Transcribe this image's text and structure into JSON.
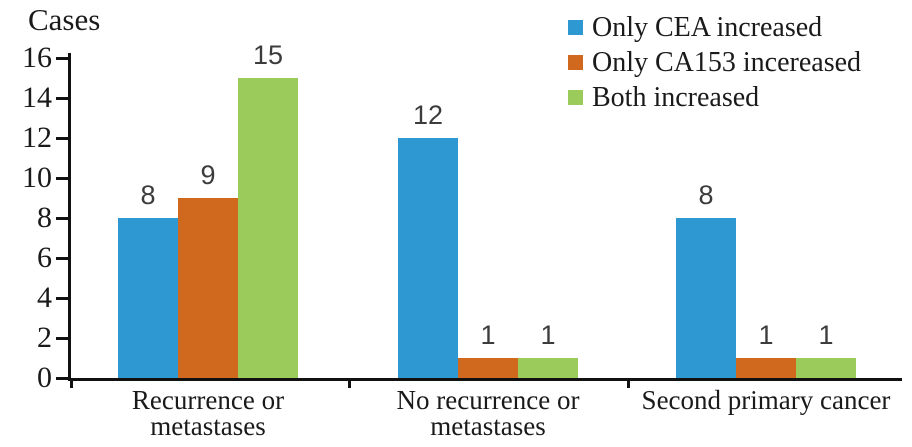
{
  "chart_data": {
    "type": "bar",
    "ylabel": "Cases",
    "categories": [
      [
        "Recurrence or",
        "metastases"
      ],
      [
        "No recurrence or",
        "metastases"
      ],
      [
        "Second primary cancer"
      ]
    ],
    "series": [
      {
        "name": "Only CEA increased",
        "color": "#2E98D2",
        "values": [
          8,
          12,
          8
        ]
      },
      {
        "name": "Only CA153 incereased",
        "color": "#D0681E",
        "values": [
          9,
          1,
          1
        ]
      },
      {
        "name": "Both increased",
        "color": "#9BCB5A",
        "values": [
          15,
          1,
          1
        ]
      }
    ],
    "ylim": [
      0,
      16
    ],
    "ytick_step": 2,
    "yticks": [
      0,
      2,
      4,
      6,
      8,
      10,
      12,
      14,
      16
    ],
    "grid": false,
    "legend_position": "top-right",
    "axis_color": "#111111",
    "value_label_color": "#3c3c3c"
  }
}
